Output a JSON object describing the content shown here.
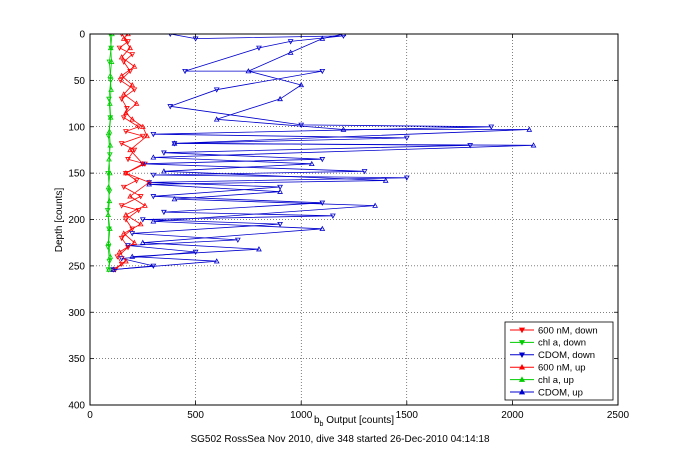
{
  "chart_data": {
    "type": "scatter",
    "xlabel": "b_b Output [counts]",
    "xlabel_main": "b",
    "xlabel_sub": "b",
    "xlabel_rest": " Output [counts]",
    "ylabel": "Depth [counts]",
    "xlim": [
      0,
      2500
    ],
    "ylim": [
      0,
      400
    ],
    "y_reversed": true,
    "grid": true,
    "legend_position": "bottom-right",
    "x_ticks": [
      0,
      500,
      1000,
      1500,
      2000,
      2500
    ],
    "y_ticks": [
      0,
      50,
      100,
      150,
      200,
      250,
      300,
      350,
      400
    ],
    "x_tick_labels": [
      "0",
      "500",
      "1000",
      "1500",
      "2000",
      "2500"
    ],
    "y_tick_labels": [
      "0",
      "50",
      "100",
      "150",
      "200",
      "250",
      "300",
      "350",
      "400"
    ],
    "caption": "SG502 RossSea Nov 2010, dive 348 started 26-Dec-2010 04:14:18",
    "series": [
      {
        "name": "600 nM, down",
        "color": "#ff0000",
        "marker": "triangle-down",
        "line": true,
        "points": [
          [
            150,
            0
          ],
          [
            180,
            8
          ],
          [
            140,
            15
          ],
          [
            200,
            22
          ],
          [
            160,
            30
          ],
          [
            190,
            40
          ],
          [
            145,
            50
          ],
          [
            210,
            60
          ],
          [
            150,
            70
          ],
          [
            175,
            80
          ],
          [
            160,
            90
          ],
          [
            230,
            100
          ],
          [
            170,
            105
          ],
          [
            250,
            110
          ],
          [
            150,
            118
          ],
          [
            210,
            125
          ],
          [
            180,
            135
          ],
          [
            260,
            140
          ],
          [
            170,
            150
          ],
          [
            220,
            158
          ],
          [
            160,
            165
          ],
          [
            240,
            175
          ],
          [
            150,
            185
          ],
          [
            230,
            190
          ],
          [
            170,
            200
          ],
          [
            200,
            210
          ],
          [
            150,
            220
          ],
          [
            180,
            230
          ],
          [
            130,
            240
          ],
          [
            150,
            248
          ],
          [
            120,
            254
          ]
        ]
      },
      {
        "name": "chl a, down",
        "color": "#00cc00",
        "marker": "triangle-down",
        "line": true,
        "points": [
          [
            95,
            0
          ],
          [
            100,
            15
          ],
          [
            92,
            30
          ],
          [
            98,
            50
          ],
          [
            90,
            70
          ],
          [
            96,
            90
          ],
          [
            88,
            110
          ],
          [
            94,
            130
          ],
          [
            86,
            150
          ],
          [
            92,
            170
          ],
          [
            84,
            190
          ],
          [
            90,
            210
          ],
          [
            86,
            230
          ],
          [
            92,
            245
          ],
          [
            88,
            254
          ]
        ]
      },
      {
        "name": "CDOM, down",
        "color": "#0000cc",
        "marker": "triangle-down",
        "line": true,
        "points": [
          [
            380,
            0
          ],
          [
            500,
            5
          ],
          [
            1200,
            2
          ],
          [
            950,
            8
          ],
          [
            800,
            15
          ],
          [
            450,
            40
          ],
          [
            1100,
            40
          ],
          [
            600,
            60
          ],
          [
            380,
            78
          ],
          [
            1000,
            98
          ],
          [
            1900,
            100
          ],
          [
            300,
            108
          ],
          [
            1500,
            112
          ],
          [
            400,
            118
          ],
          [
            1800,
            120
          ],
          [
            350,
            128
          ],
          [
            1100,
            135
          ],
          [
            250,
            140
          ],
          [
            1300,
            148
          ],
          [
            300,
            152
          ],
          [
            1500,
            155
          ],
          [
            280,
            160
          ],
          [
            900,
            165
          ],
          [
            300,
            175
          ],
          [
            1100,
            182
          ],
          [
            350,
            192
          ],
          [
            1150,
            196
          ],
          [
            250,
            200
          ],
          [
            900,
            205
          ],
          [
            200,
            215
          ],
          [
            700,
            222
          ],
          [
            180,
            228
          ],
          [
            500,
            235
          ],
          [
            150,
            242
          ],
          [
            300,
            250
          ],
          [
            110,
            254
          ]
        ]
      },
      {
        "name": "600 nM, up",
        "color": "#ff0000",
        "marker": "triangle-up",
        "line": true,
        "points": [
          [
            110,
            254
          ],
          [
            170,
            245
          ],
          [
            140,
            235
          ],
          [
            210,
            225
          ],
          [
            160,
            215
          ],
          [
            240,
            205
          ],
          [
            170,
            195
          ],
          [
            260,
            185
          ],
          [
            190,
            175
          ],
          [
            280,
            160
          ],
          [
            170,
            150
          ],
          [
            250,
            140
          ],
          [
            190,
            125
          ],
          [
            270,
            110
          ],
          [
            250,
            100
          ],
          [
            200,
            92
          ],
          [
            170,
            85
          ],
          [
            220,
            75
          ],
          [
            160,
            65
          ],
          [
            200,
            55
          ],
          [
            150,
            45
          ],
          [
            210,
            35
          ],
          [
            150,
            25
          ],
          [
            190,
            15
          ],
          [
            160,
            5
          ],
          [
            180,
            0
          ]
        ]
      },
      {
        "name": "chl a, up",
        "color": "#00cc00",
        "marker": "triangle-up",
        "line": true,
        "points": [
          [
            90,
            254
          ],
          [
            96,
            240
          ],
          [
            88,
            225
          ],
          [
            94,
            210
          ],
          [
            86,
            195
          ],
          [
            92,
            180
          ],
          [
            88,
            165
          ],
          [
            94,
            150
          ],
          [
            90,
            135
          ],
          [
            96,
            120
          ],
          [
            92,
            105
          ],
          [
            98,
            90
          ],
          [
            94,
            75
          ],
          [
            100,
            60
          ],
          [
            96,
            45
          ],
          [
            102,
            30
          ],
          [
            98,
            15
          ],
          [
            104,
            0
          ]
        ]
      },
      {
        "name": "CDOM, up",
        "color": "#0000cc",
        "marker": "triangle-up",
        "line": true,
        "points": [
          [
            110,
            254
          ],
          [
            600,
            245
          ],
          [
            200,
            240
          ],
          [
            800,
            232
          ],
          [
            250,
            225
          ],
          [
            1100,
            210
          ],
          [
            300,
            202
          ],
          [
            1350,
            185
          ],
          [
            400,
            178
          ],
          [
            900,
            170
          ],
          [
            280,
            162
          ],
          [
            1400,
            158
          ],
          [
            350,
            148
          ],
          [
            1050,
            140
          ],
          [
            300,
            133
          ],
          [
            2100,
            120
          ],
          [
            400,
            118
          ],
          [
            2080,
            103
          ],
          [
            1200,
            103
          ],
          [
            600,
            92
          ],
          [
            900,
            70
          ],
          [
            1000,
            55
          ],
          [
            750,
            40
          ],
          [
            950,
            20
          ],
          [
            1100,
            5
          ],
          [
            1200,
            0
          ]
        ]
      }
    ]
  }
}
